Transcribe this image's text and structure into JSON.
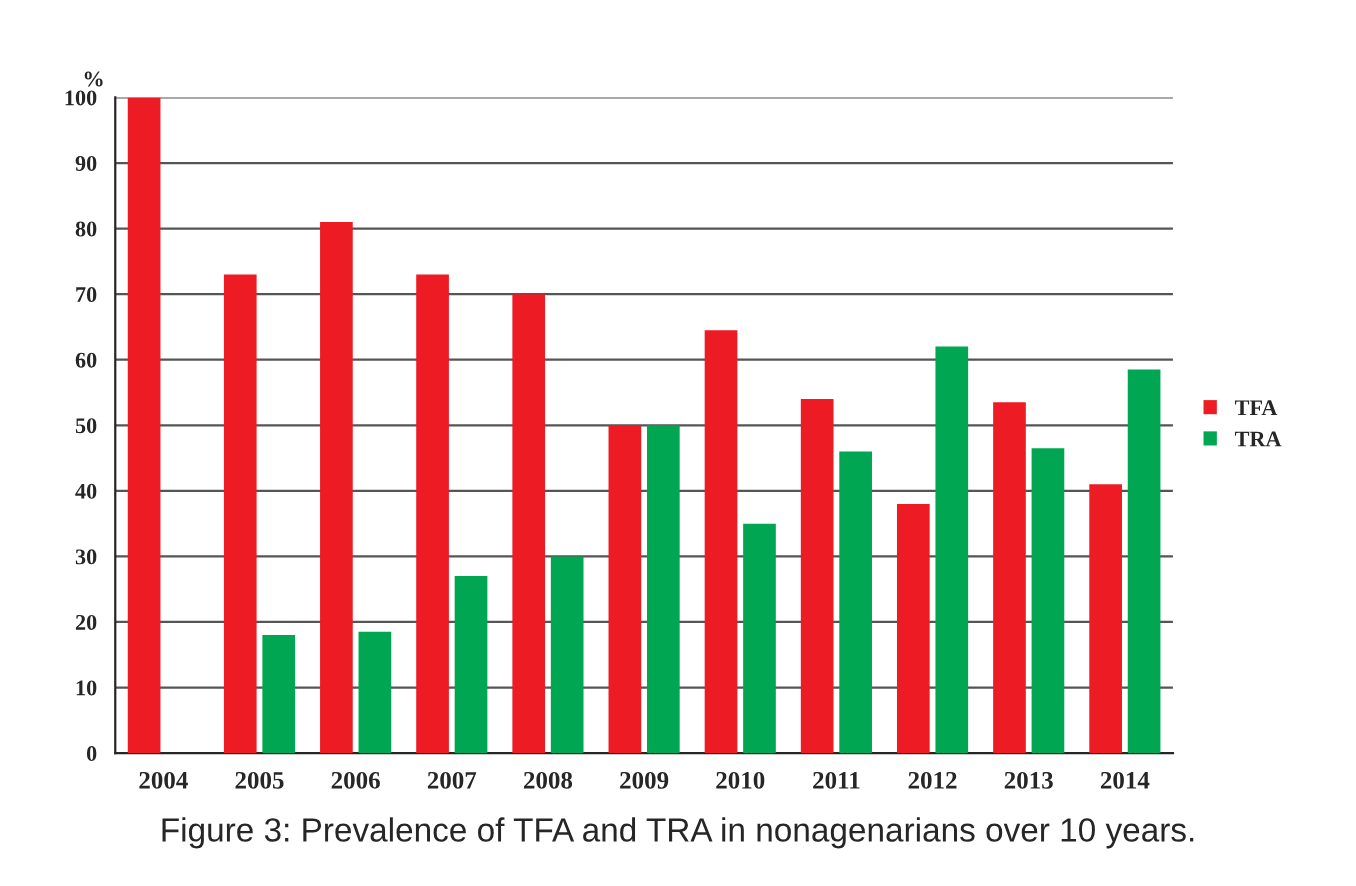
{
  "chart_data": {
    "type": "bar",
    "ylabel": "%",
    "categories": [
      "2004",
      "2005",
      "2006",
      "2007",
      "2008",
      "2009",
      "2010",
      "2011",
      "2012",
      "2013",
      "2014"
    ],
    "series": [
      {
        "name": "TFA",
        "color": "#ed1c24",
        "values": [
          100,
          73,
          81,
          73,
          70,
          50,
          64.5,
          54,
          38,
          53.5,
          41
        ]
      },
      {
        "name": "TRA",
        "color": "#00a651",
        "values": [
          0,
          18,
          18.5,
          27,
          30,
          50,
          35,
          46,
          62,
          46.5,
          58.5
        ]
      }
    ],
    "ylim": [
      0,
      100
    ],
    "yticks": [
      0,
      10,
      20,
      30,
      40,
      50,
      60,
      70,
      80,
      90,
      100
    ],
    "grid": "y",
    "legend": "right",
    "annotations": [
      "Figure 3: Prevalence of TFA and TRA in nonagenarians over 10 years."
    ]
  }
}
